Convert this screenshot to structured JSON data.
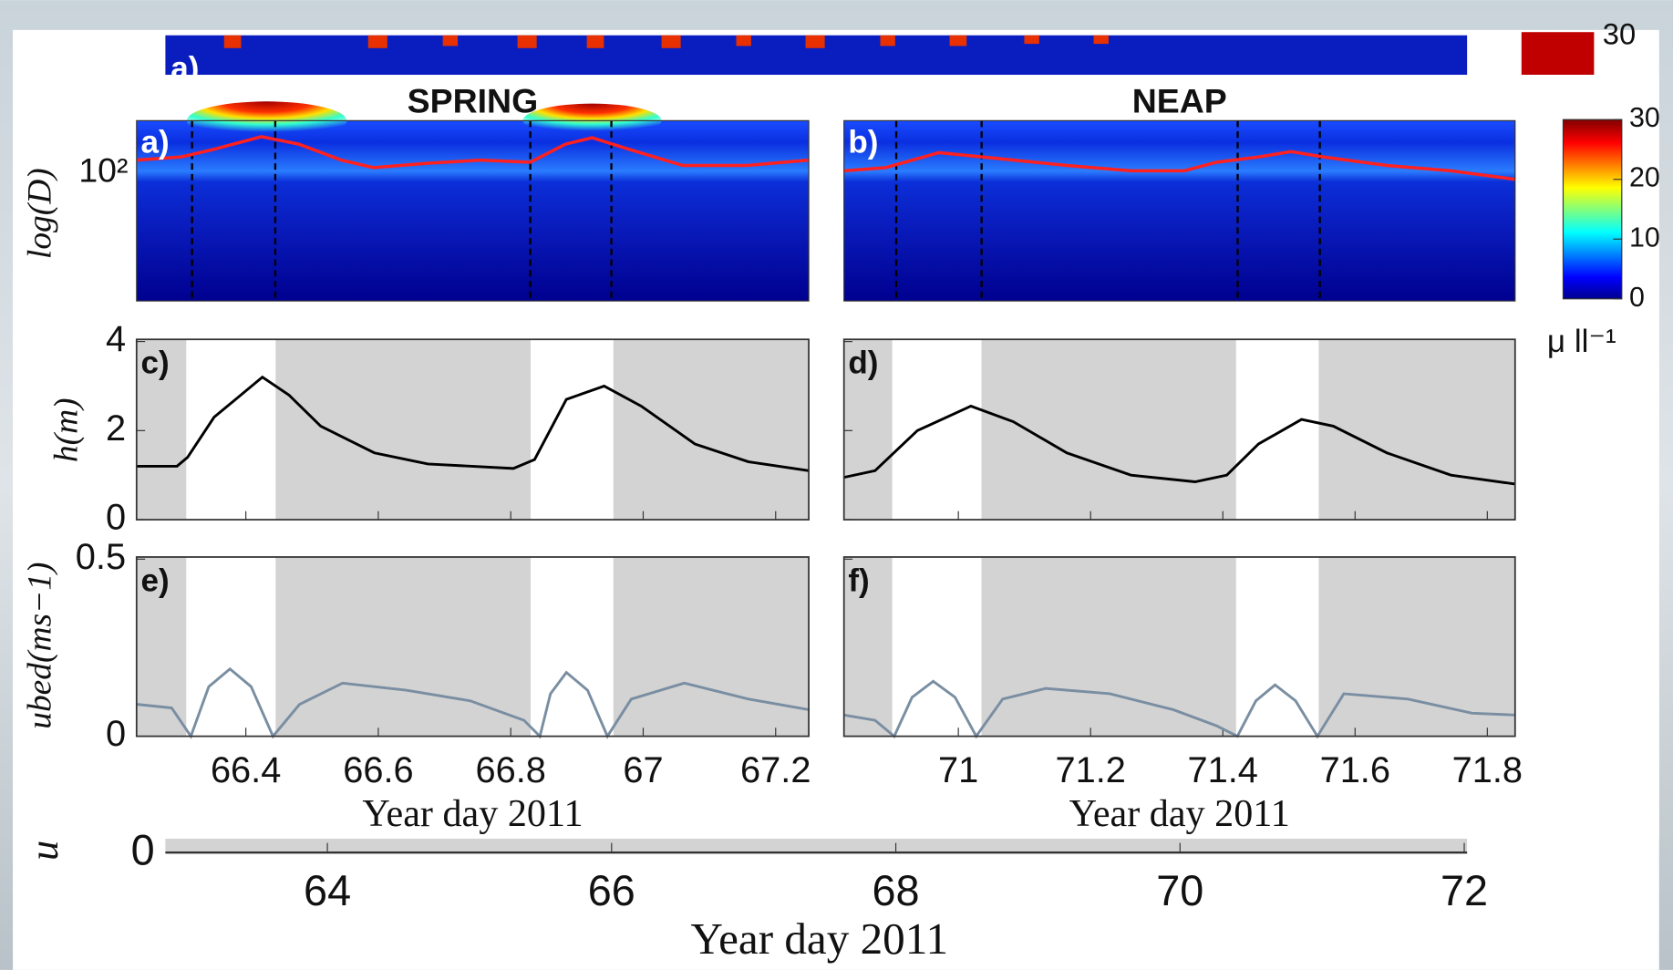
{
  "chart_data": [
    {
      "type": "heatmap",
      "title": "SPRING",
      "panel_label": "a)",
      "ylabel": "log(D)",
      "ytick_label": "10²"
    },
    {
      "type": "heatmap",
      "title": "NEAP",
      "panel_label": "b)"
    },
    {
      "type": "line",
      "panel_label": "c)",
      "ylabel": "h(m)",
      "color": "#000000",
      "xlim": [
        66.235,
        67.25
      ],
      "ylim": [
        0,
        4
      ],
      "yticks": [
        0,
        2,
        4
      ],
      "xticks": [
        66.4,
        66.6,
        66.8,
        67,
        67.2
      ],
      "shaded": [
        [
          66.235,
          66.31
        ],
        [
          66.445,
          66.83
        ],
        [
          66.955,
          67.25
        ]
      ],
      "x": [
        66.236,
        66.296,
        66.312,
        66.352,
        66.425,
        66.465,
        66.513,
        66.594,
        66.675,
        66.804,
        66.836,
        66.884,
        66.941,
        66.997,
        67.078,
        67.159,
        67.25
      ],
      "values": [
        1.2,
        1.2,
        1.4,
        2.3,
        3.2,
        2.8,
        2.1,
        1.5,
        1.25,
        1.15,
        1.35,
        2.7,
        3.0,
        2.55,
        1.7,
        1.3,
        1.1
      ]
    },
    {
      "type": "line",
      "panel_label": "d)",
      "color": "#000000",
      "xlim": [
        70.827,
        71.842
      ],
      "ylim": [
        0,
        4
      ],
      "yticks": [
        0,
        2,
        4
      ],
      "xticks": [
        71,
        71.2,
        71.4,
        71.6,
        71.8
      ],
      "shaded": [
        [
          70.827,
          70.9
        ],
        [
          71.035,
          71.42
        ],
        [
          71.545,
          71.842
        ]
      ],
      "x": [
        70.827,
        70.874,
        70.938,
        71.019,
        71.083,
        71.164,
        71.261,
        71.358,
        71.406,
        71.454,
        71.519,
        71.567,
        71.648,
        71.745,
        71.842
      ],
      "values": [
        0.95,
        1.1,
        2.0,
        2.55,
        2.2,
        1.5,
        1.0,
        0.85,
        1.0,
        1.7,
        2.25,
        2.1,
        1.5,
        1.0,
        0.8
      ]
    },
    {
      "type": "line",
      "panel_label": "e)",
      "ylabel": "ubed(ms−1)",
      "xlabel": "Year day 2011",
      "color": "#7a8ea2",
      "xlim": [
        66.235,
        67.25
      ],
      "ylim": [
        0,
        0.5
      ],
      "yticks": [
        0,
        0.5
      ],
      "xticks": [
        66.4,
        66.6,
        66.8,
        67,
        67.2
      ],
      "shaded": [
        [
          66.235,
          66.31
        ],
        [
          66.445,
          66.83
        ],
        [
          66.955,
          67.25
        ]
      ],
      "x": [
        66.236,
        66.288,
        66.317,
        66.344,
        66.376,
        66.408,
        66.441,
        66.481,
        66.546,
        66.642,
        66.739,
        66.82,
        66.844,
        66.86,
        66.884,
        66.916,
        66.946,
        66.982,
        67.062,
        67.159,
        67.25
      ],
      "values": [
        0.09,
        0.08,
        0,
        0.14,
        0.19,
        0.14,
        0,
        0.09,
        0.15,
        0.13,
        0.1,
        0.045,
        0,
        0.12,
        0.18,
        0.13,
        0,
        0.105,
        0.15,
        0.105,
        0.075
      ]
    },
    {
      "type": "line",
      "panel_label": "f)",
      "xlabel": "Year day 2011",
      "color": "#7a8ea2",
      "xlim": [
        70.827,
        71.842
      ],
      "ylim": [
        0,
        0.5
      ],
      "yticks": [
        0,
        0.5
      ],
      "xticks": [
        71,
        71.2,
        71.4,
        71.6,
        71.8
      ],
      "shaded": [
        [
          70.827,
          70.9
        ],
        [
          71.035,
          71.42
        ],
        [
          71.545,
          71.842
        ]
      ],
      "x": [
        70.827,
        70.874,
        70.903,
        70.93,
        70.962,
        70.995,
        71.027,
        71.067,
        71.132,
        71.229,
        71.325,
        71.39,
        71.422,
        71.45,
        71.479,
        71.51,
        71.543,
        71.583,
        71.68,
        71.777,
        71.842
      ],
      "values": [
        0.06,
        0.045,
        0,
        0.11,
        0.155,
        0.11,
        0,
        0.105,
        0.135,
        0.12,
        0.075,
        0.03,
        0,
        0.1,
        0.145,
        0.1,
        0,
        0.12,
        0.105,
        0.065,
        0.06
      ]
    },
    {
      "type": "colorbar",
      "label": "μ ll⁻¹",
      "ylim": [
        0,
        30
      ],
      "yticks": [
        0,
        10,
        20,
        30
      ]
    },
    {
      "type": "axis",
      "panel_label": "a)",
      "colorbar_ticks": [
        30
      ],
      "ylabel": "u",
      "xlabel": "Year day 2011",
      "xlim": [
        62.86,
        72.02
      ],
      "xticks": [
        64,
        66,
        68,
        70,
        72
      ],
      "yticks": [
        0
      ]
    }
  ]
}
